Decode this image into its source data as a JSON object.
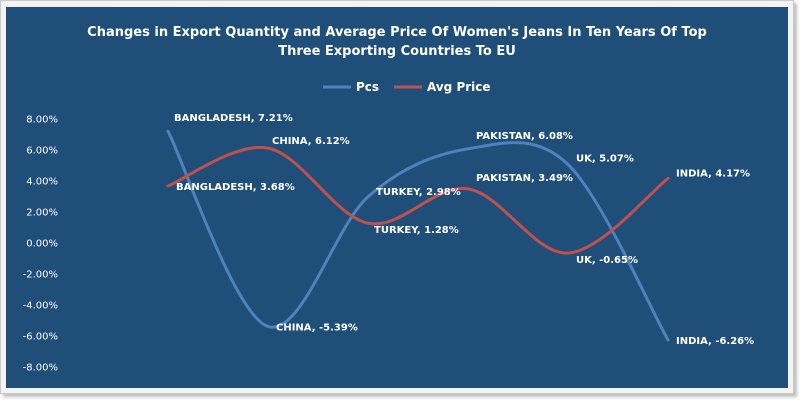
{
  "colors": {
    "background": "#1f4e79",
    "pcs": "#4f81bd",
    "avg_price": "#c0504d",
    "text": "#ffffff"
  },
  "chart_data": {
    "type": "line",
    "title": "Changes in Export Quantity and Average Price  Of Women's Jeans In Ten Years  Of Top Three Exporting Countries To EU",
    "title_lines": [
      "Changes in Export Quantity and Average Price  Of Women's Jeans In Ten Years  Of Top",
      "Three Exporting Countries To EU"
    ],
    "categories": [
      "BANGLADESH",
      "CHINA",
      "TURKEY",
      "PAKISTAN",
      "UK",
      "INDIA"
    ],
    "series": [
      {
        "name": "Pcs",
        "values": [
          7.21,
          -5.39,
          2.98,
          6.08,
          5.07,
          -6.26
        ],
        "labels": [
          "BANGLADESH, 7.21%",
          "CHINA, -5.39%",
          "TURKEY, 2.98%",
          "PAKISTAN, 6.08%",
          "UK, 5.07%",
          "INDIA, -6.26%"
        ]
      },
      {
        "name": "Avg Price",
        "values": [
          3.68,
          6.12,
          1.28,
          3.49,
          -0.65,
          4.17
        ],
        "labels": [
          "BANGLADESH, 3.68%",
          "CHINA, 6.12%",
          "TURKEY, 1.28%",
          "PAKISTAN, 3.49%",
          "UK, -0.65%",
          "INDIA, 4.17%"
        ]
      }
    ],
    "y_ticks": [
      "8.00%",
      "6.00%",
      "4.00%",
      "2.00%",
      "0.00%",
      "-2.00%",
      "-4.00%",
      "-6.00%",
      "-8.00%"
    ],
    "ylim": [
      -8,
      8
    ],
    "smooth": true,
    "grid": false,
    "legend_position": "top-center"
  }
}
